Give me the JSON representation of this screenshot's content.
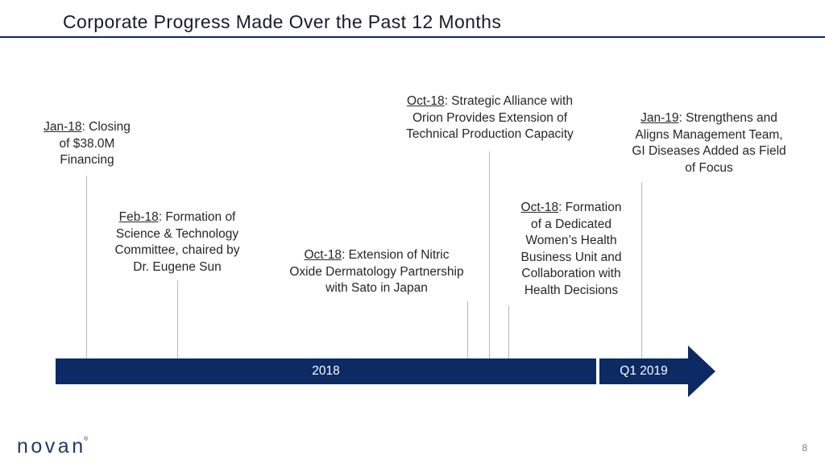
{
  "slide": {
    "title": "Corporate Progress Made Over the Past 12 Months",
    "page_number": "8"
  },
  "logo": {
    "text": "novan",
    "mark": "®"
  },
  "timeline": {
    "label_2018": "2018",
    "label_q1_2019": "Q1 2019",
    "bar_color": "#0c2a64"
  },
  "events": {
    "jan18": {
      "date": "Jan-18",
      "lines": [
        ": Closing",
        "of $38.0M",
        "Financing"
      ]
    },
    "feb18": {
      "date": "Feb-18",
      "lines": [
        ": Formation of",
        "Science & Technology",
        "Committee, chaired by",
        "Dr. Eugene Sun"
      ]
    },
    "oct18_sato": {
      "date": "Oct-18",
      "lines": [
        ": Extension of Nitric",
        "Oxide Dermatology Partnership",
        "with Sato in Japan"
      ]
    },
    "oct18_orion": {
      "date": "Oct-18",
      "lines": [
        ": Strategic Alliance with",
        "Orion Provides Extension of",
        "Technical Production Capacity"
      ]
    },
    "oct18_womens": {
      "date": "Oct-18",
      "lines": [
        ": Formation",
        "of a Dedicated",
        "Women’s Health",
        "Business Unit and",
        "Collaboration with",
        "Health Decisions"
      ]
    },
    "jan19": {
      "date": "Jan-19",
      "lines": [
        ": Strengthens and",
        "Aligns Management Team,",
        "GI Diseases Added as Field",
        "of Focus"
      ]
    }
  }
}
